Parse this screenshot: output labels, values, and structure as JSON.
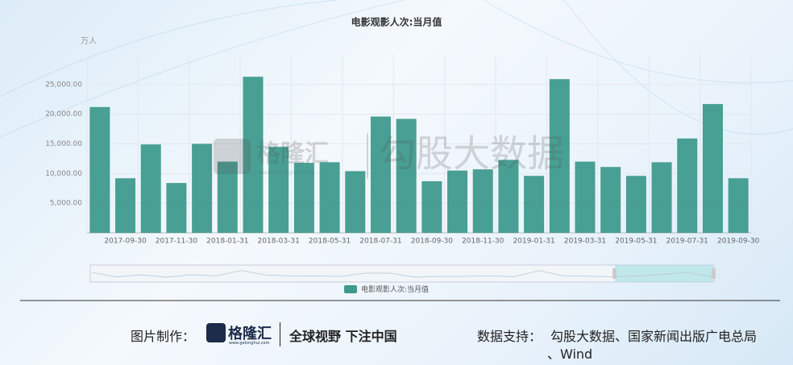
{
  "chart_data": {
    "type": "bar",
    "title": "电影观影人次:当月值",
    "y_unit": "万人",
    "categories": [
      null,
      "2017-09-30",
      null,
      "2017-11-30",
      null,
      "2018-01-31",
      null,
      "2018-03-31",
      null,
      "2018-05-31",
      null,
      "2018-07-31",
      null,
      "2018-09-30",
      null,
      "2018-11-30",
      null,
      "2019-01-31",
      null,
      "2019-03-31",
      null,
      "2019-05-31",
      null,
      "2019-07-31",
      null,
      "2019-09-30"
    ],
    "series": [
      {
        "name": "电影观影人次:当月值",
        "color": "#3f9a8e",
        "values": [
          21200,
          9200,
          14900,
          8400,
          15000,
          12000,
          26300,
          14500,
          11800,
          11900,
          10400,
          19600,
          19200,
          8700,
          10500,
          10700,
          12300,
          9600,
          25900,
          12000,
          11100,
          9600,
          11900,
          15900,
          21700,
          9200
        ]
      }
    ],
    "ylim": [
      0,
      30000
    ],
    "yticks": [
      {
        "value": 5000,
        "label": "5,000.00"
      },
      {
        "value": 10000,
        "label": "10,000.00"
      },
      {
        "value": 15000,
        "label": "15,000.00"
      },
      {
        "value": 20000,
        "label": "20,000.00"
      },
      {
        "value": 25000,
        "label": "25,000.00"
      }
    ],
    "grid": true,
    "legend": "bottom"
  },
  "watermark": {
    "logo": "格隆汇",
    "site": "www.gelonghui.com",
    "brand": "勾股大数据"
  },
  "footer": {
    "made_by": "图片制作：",
    "logo": "格隆汇",
    "site": "www.gelonghui.com",
    "slogan": "全球视野 下注中国",
    "source_label": "数据支持：",
    "source": "勾股大数据、国家新闻出版广电总局",
    "source2": "、Wind"
  }
}
